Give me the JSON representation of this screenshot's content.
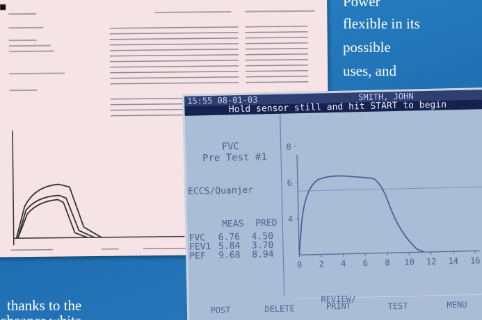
{
  "caption": {
    "right_lines": [
      "Power",
      "flexible in its",
      "possible",
      "uses, and"
    ],
    "left_lines": [
      "thanks to the",
      "cheaper white"
    ]
  },
  "screen": {
    "status": {
      "time": "15:55 08-01-03",
      "patient": "SMITH, JOHN"
    },
    "banner": "Hold sensor still and hit START to begin",
    "test_name": "FVC",
    "test_label": "Pre Test #1",
    "reference": "ECCS/Quanjer",
    "table": {
      "headers": [
        "MEAS",
        "PRED"
      ],
      "rows": [
        [
          "FVC",
          "6.76",
          "4.50"
        ],
        [
          "FEV1",
          "5.84",
          "3.70"
        ],
        [
          "PEF",
          "9.68",
          "8.94"
        ]
      ]
    },
    "graph": {
      "yticks": [
        4,
        6,
        8
      ],
      "xticks": [
        0,
        2,
        4,
        6,
        8,
        10,
        12,
        14,
        16
      ]
    },
    "buttons": [
      "POST",
      "DELETE",
      "REVIEW/ PRINT",
      "TEST",
      "MENU"
    ]
  }
}
